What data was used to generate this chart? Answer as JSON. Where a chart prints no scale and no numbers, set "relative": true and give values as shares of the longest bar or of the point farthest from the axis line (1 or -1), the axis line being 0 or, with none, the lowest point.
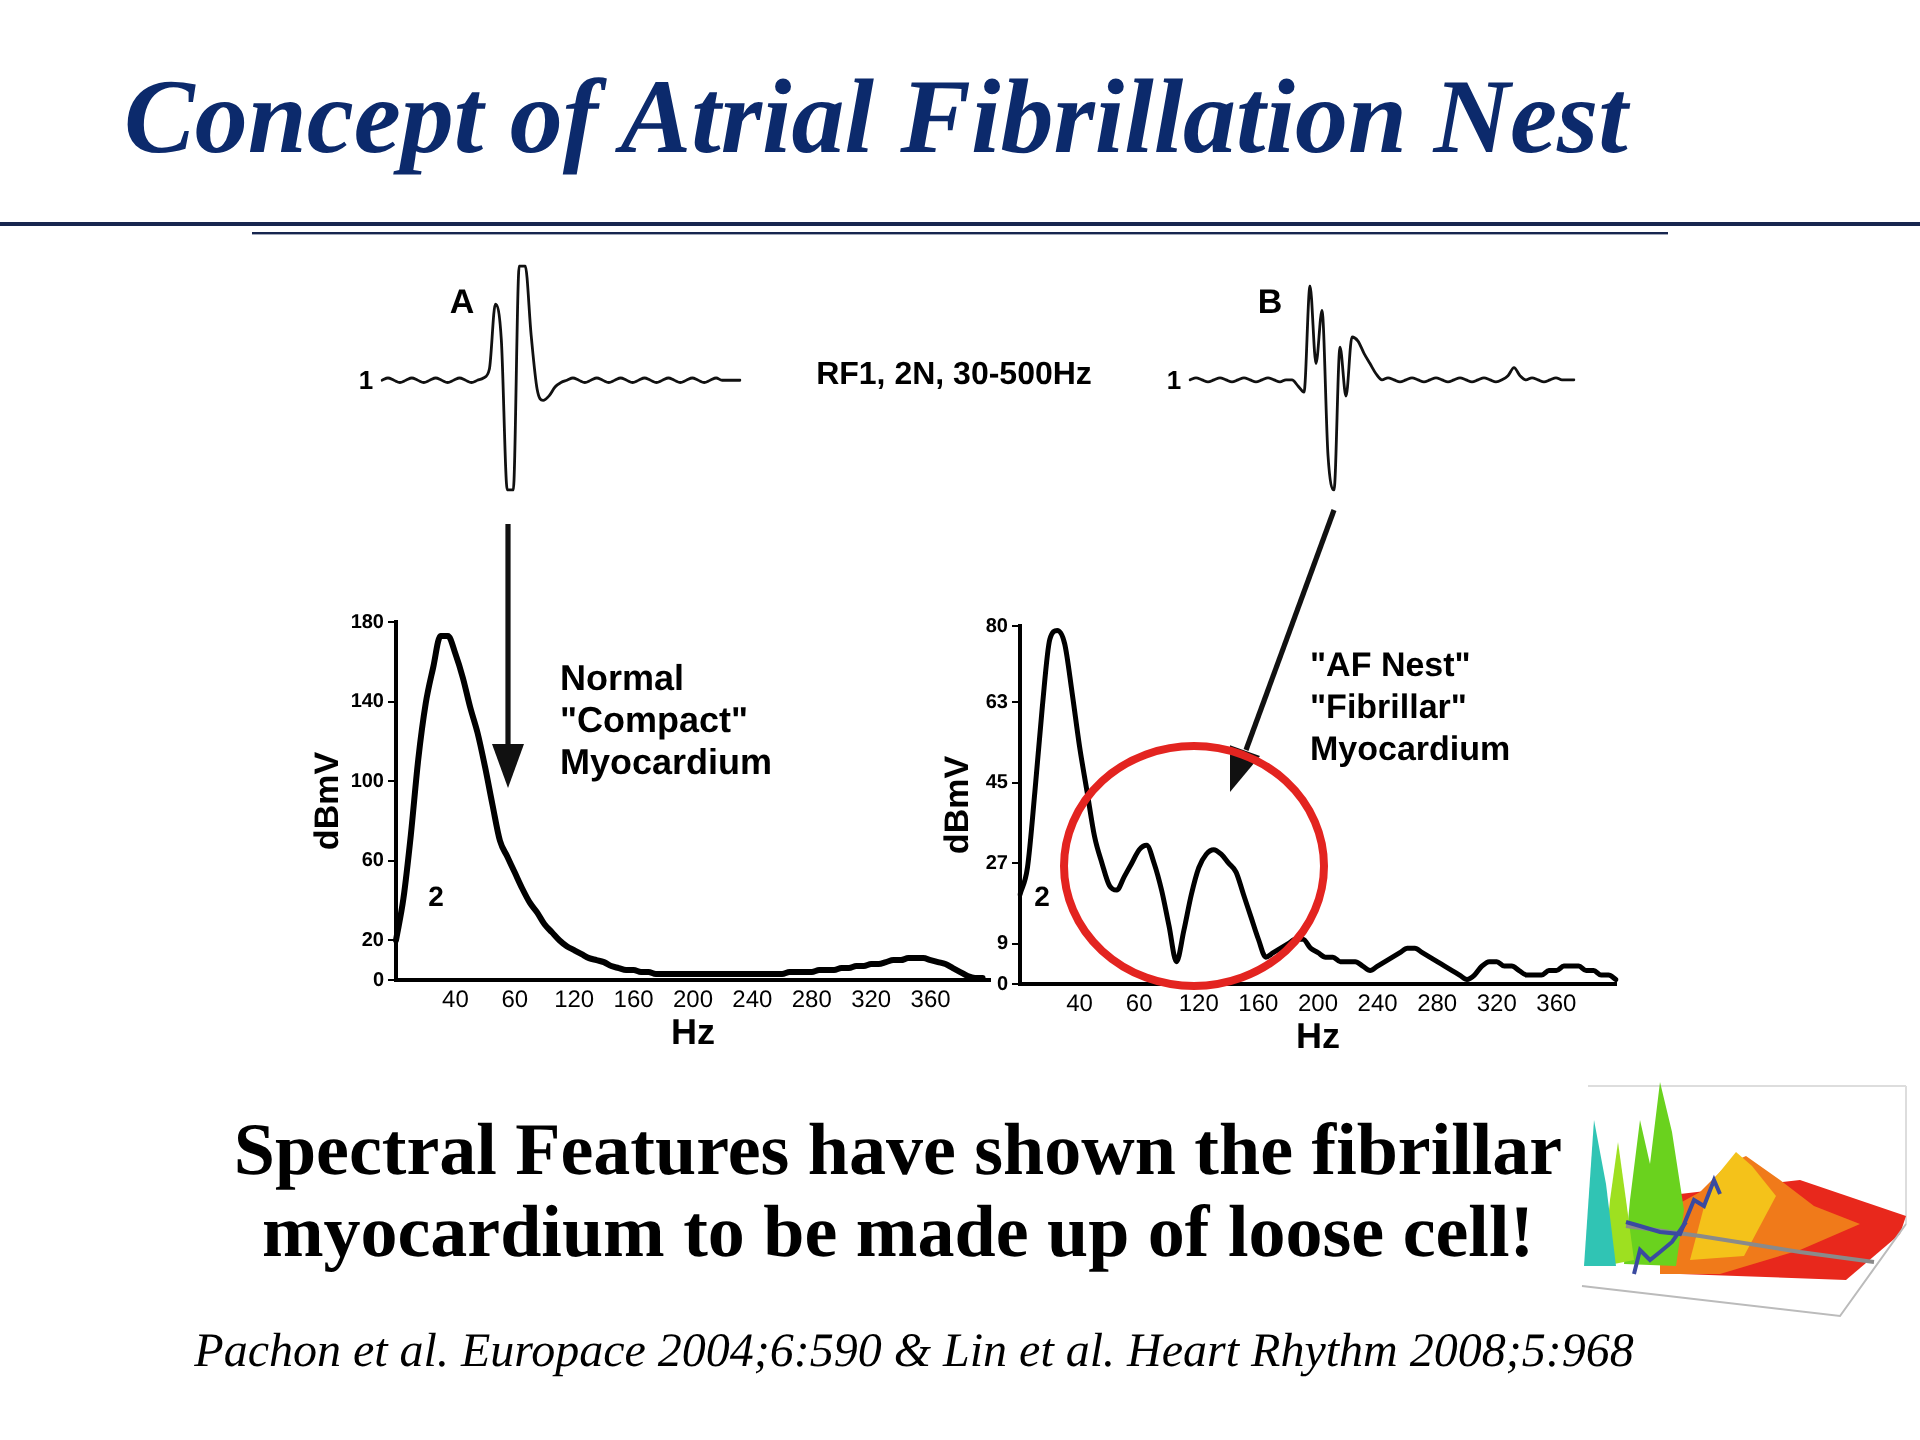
{
  "chart_data": [
    {
      "type": "line",
      "title": "Concept of Atrial Fibrillation Nest",
      "relative": true,
      "marker": "none",
      "categories": [
        null,
        null,
        null,
        null,
        null,
        null,
        null,
        null,
        null,
        null,
        null,
        null,
        null,
        null,
        null,
        null,
        null,
        null,
        null,
        null,
        null,
        null,
        null,
        null,
        null,
        null,
        null,
        null,
        null,
        null,
        null,
        null,
        null,
        null,
        null,
        null,
        null,
        null,
        null,
        null,
        null,
        null,
        null,
        null,
        null,
        null,
        null,
        null,
        null,
        null,
        null,
        null,
        null,
        null,
        null,
        null,
        null,
        null,
        null,
        null,
        null
      ],
      "series": [
        {
          "color": "#111111",
          "values": [
            0.49,
            0.5,
            0.49,
            0.48,
            0.49,
            0.5,
            0.49,
            0.48,
            0.49,
            0.5,
            0.49,
            0.48,
            0.49,
            0.5,
            0.49,
            0.48,
            0.49,
            0.5,
            0.54,
            0.83,
            0.67,
            0,
            0,
            1,
            1,
            0.69,
            0.45,
            0.4,
            0.42,
            0.46,
            0.48,
            0.49,
            0.5,
            0.49,
            0.48,
            0.49,
            0.5,
            0.49,
            0.48,
            0.49,
            0.5,
            0.49,
            0.48,
            0.49,
            0.5,
            0.49,
            0.48,
            0.49,
            0.5,
            0.49,
            0.48,
            0.49,
            0.5,
            0.49,
            0.48,
            0.49,
            0.5,
            0.49,
            0.49,
            0.49,
            0.49
          ]
        }
      ],
      "annotations": [
        "A",
        "1",
        "RF1, 2N, 30-500Hz"
      ]
    },
    {
      "type": "line",
      "relative": true,
      "marker": "none",
      "categories": [
        null,
        null,
        null,
        null,
        null,
        null,
        null,
        null,
        null,
        null,
        null,
        null,
        null,
        null,
        null,
        null,
        null,
        null,
        null,
        null,
        null,
        null,
        null,
        null,
        null,
        null,
        null,
        null,
        null,
        null,
        null,
        null,
        null,
        null,
        null,
        null,
        null,
        null,
        null,
        null,
        null,
        null,
        null,
        null,
        null,
        null,
        null,
        null,
        null,
        null,
        null,
        null,
        null,
        null,
        null,
        null,
        null,
        null,
        null,
        null,
        null,
        null,
        null,
        null,
        null
      ],
      "series": [
        {
          "color": "#111111",
          "values": [
            0.54,
            0.55,
            0.54,
            0.53,
            0.54,
            0.55,
            0.54,
            0.53,
            0.54,
            0.55,
            0.54,
            0.53,
            0.54,
            0.55,
            0.54,
            0.53,
            0.54,
            0.54,
            0.51,
            0.48,
            1,
            0.62,
            0.88,
            0.17,
            0,
            0.7,
            0.46,
            0.75,
            0.73,
            0.67,
            0.62,
            0.57,
            0.54,
            0.55,
            0.54,
            0.53,
            0.54,
            0.55,
            0.54,
            0.53,
            0.54,
            0.55,
            0.54,
            0.53,
            0.54,
            0.55,
            0.54,
            0.53,
            0.54,
            0.55,
            0.54,
            0.53,
            0.54,
            0.56,
            0.6,
            0.56,
            0.54,
            0.55,
            0.54,
            0.53,
            0.54,
            0.55,
            0.54,
            0.54,
            0.54
          ]
        }
      ],
      "annotations": [
        "B",
        "1"
      ]
    },
    {
      "type": "line",
      "xlabel": "Hz",
      "ylabel": "dBmV",
      "marker": "none",
      "categories": [
        null,
        null,
        null,
        null,
        null,
        null,
        null,
        null,
        "40",
        null,
        null,
        null,
        null,
        null,
        null,
        null,
        "60",
        null,
        null,
        null,
        null,
        null,
        null,
        null,
        "120",
        null,
        null,
        null,
        null,
        null,
        null,
        null,
        "160",
        null,
        null,
        null,
        null,
        null,
        null,
        null,
        "200",
        null,
        null,
        null,
        null,
        null,
        null,
        null,
        "240",
        null,
        null,
        null,
        null,
        null,
        null,
        null,
        "280",
        null,
        null,
        null,
        null,
        null,
        null,
        null,
        "320",
        null,
        null,
        null,
        null,
        null,
        null,
        null,
        "360",
        null,
        null,
        null,
        null,
        null,
        null,
        null,
        null
      ],
      "series": [
        {
          "color": "#000000",
          "values": [
            20,
            41,
            73,
            111,
            139,
            157,
            173,
            173,
            164,
            152,
            137,
            124,
            107,
            88,
            70,
            62,
            54,
            46,
            39,
            34,
            28,
            24,
            20,
            17,
            15,
            13,
            11,
            10,
            9,
            7,
            6,
            5,
            5,
            4,
            4,
            3,
            3,
            3,
            3,
            3,
            3,
            3,
            3,
            3,
            3,
            3,
            3,
            3,
            3,
            3,
            3,
            3,
            3,
            4,
            4,
            4,
            4,
            5,
            5,
            5,
            6,
            6,
            7,
            7,
            8,
            8,
            9,
            10,
            10,
            11,
            11,
            11,
            10,
            9,
            8,
            6,
            4,
            2,
            1,
            1,
            null
          ]
        }
      ],
      "ylim": [
        0,
        180
      ],
      "yticks": [
        0,
        20,
        60,
        100,
        140,
        180
      ],
      "annotations": [
        "Normal \"Compact\" Myocardium",
        "2"
      ]
    },
    {
      "type": "line",
      "xlabel": "Hz",
      "ylabel": "dBmV",
      "marker": "none",
      "categories": [
        null,
        null,
        null,
        null,
        null,
        null,
        null,
        null,
        "40",
        null,
        null,
        null,
        null,
        null,
        null,
        null,
        "60",
        null,
        null,
        null,
        null,
        null,
        null,
        null,
        "120",
        null,
        null,
        null,
        null,
        null,
        null,
        null,
        "160",
        null,
        null,
        null,
        null,
        null,
        null,
        null,
        "200",
        null,
        null,
        null,
        null,
        null,
        null,
        null,
        "240",
        null,
        null,
        null,
        null,
        null,
        null,
        null,
        "280",
        null,
        null,
        null,
        null,
        null,
        null,
        null,
        "320",
        null,
        null,
        null,
        null,
        null,
        null,
        null,
        "360",
        null,
        null,
        null,
        null,
        null,
        null,
        null,
        null
      ],
      "series": [
        {
          "color": "#000000",
          "values": [
            20,
            26,
            43,
            62,
            77,
            79,
            76,
            65,
            53,
            43,
            33,
            27,
            22,
            21,
            24,
            27,
            30,
            31,
            27,
            21,
            13,
            5,
            12,
            20,
            26,
            29,
            30,
            29,
            27,
            25,
            20,
            15,
            10,
            6,
            7,
            8,
            9,
            10,
            10,
            8,
            7,
            6,
            6,
            5,
            5,
            5,
            4,
            3,
            4,
            5,
            6,
            7,
            8,
            8,
            7,
            6,
            5,
            4,
            3,
            2,
            1,
            2,
            4,
            5,
            5,
            4,
            4,
            3,
            2,
            2,
            2,
            3,
            3,
            4,
            4,
            4,
            3,
            3,
            2,
            2,
            1
          ]
        }
      ],
      "ylim": [
        0,
        80
      ],
      "yticks": [
        0,
        9,
        27,
        45,
        63,
        80
      ],
      "annotations": [
        "\"AF Nest\" \"Fibrillar\" Myocardium",
        "2",
        "Spectral Features have shown the fibrillar myocardium to be made up of loose cell!",
        "Pachon et al. Europace 2004;6:590 & Lin et al. Heart Rhythm 2008;5:968"
      ]
    }
  ]
}
